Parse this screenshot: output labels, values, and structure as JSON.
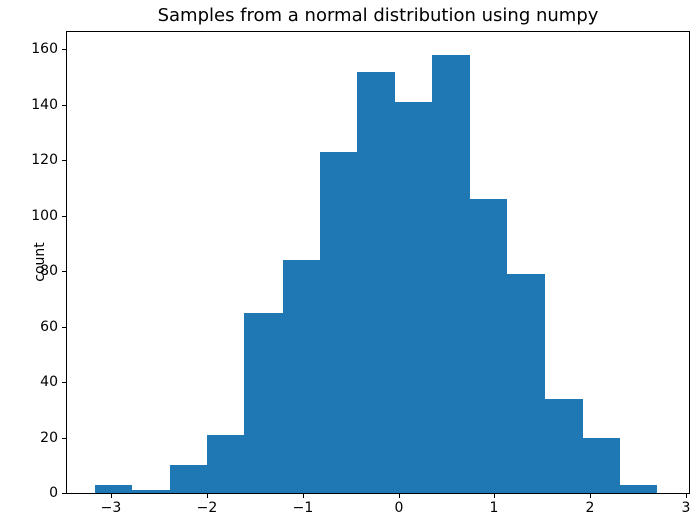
{
  "figure": {
    "title": "Samples from a normal distribution using numpy",
    "ylabel": "count",
    "background_color": "#ffffff",
    "axes_color": "#000000"
  },
  "chart_data": {
    "type": "bar",
    "variant": "histogram",
    "title": "Samples from a normal distribution using numpy",
    "xlabel": "",
    "ylabel": "count",
    "bar_color": "#1f77b4",
    "grid": false,
    "legend": null,
    "bin_edges": [
      -3.17,
      -2.78,
      -2.39,
      -2.0,
      -1.61,
      -1.21,
      -0.82,
      -0.43,
      -0.04,
      0.35,
      0.74,
      1.13,
      1.53,
      1.92,
      2.31,
      2.7
    ],
    "counts": [
      3,
      1,
      10,
      21,
      65,
      84,
      123,
      152,
      141,
      158,
      106,
      79,
      34,
      20,
      3
    ],
    "xlim": [
      -3.46,
      3.03
    ],
    "ylim": [
      0,
      166.3
    ],
    "xticks": [
      -3,
      -2,
      -1,
      0,
      1,
      2,
      3
    ],
    "xtick_labels": [
      "−3",
      "−2",
      "−1",
      "0",
      "1",
      "2",
      "3"
    ],
    "yticks": [
      0,
      20,
      40,
      60,
      80,
      100,
      120,
      140,
      160
    ],
    "ytick_labels": [
      "0",
      "20",
      "40",
      "60",
      "80",
      "100",
      "120",
      "140",
      "160"
    ]
  }
}
